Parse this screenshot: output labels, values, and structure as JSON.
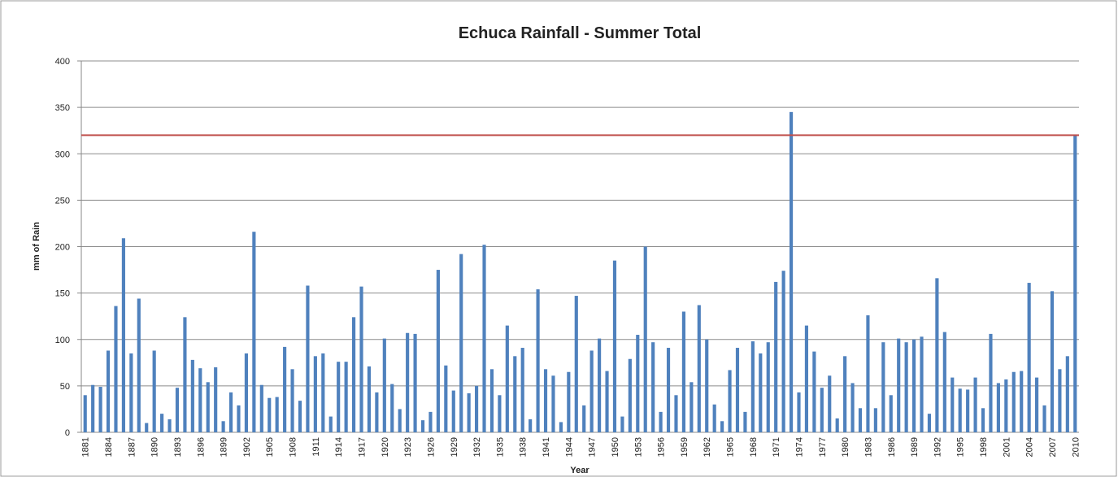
{
  "chart_data": {
    "type": "bar",
    "title": "Echuca Rainfall - Summer Total",
    "y_label": "mm of Rain",
    "x_label": "Year",
    "categories": [
      "1881",
      null,
      null,
      "1884",
      null,
      null,
      "1887",
      null,
      null,
      "1890",
      null,
      null,
      "1893",
      null,
      null,
      "1896",
      null,
      null,
      "1899",
      null,
      null,
      "1902",
      null,
      null,
      "1905",
      null,
      null,
      "1908",
      null,
      null,
      "1911",
      null,
      null,
      "1914",
      null,
      null,
      "1917",
      null,
      null,
      "1920",
      null,
      null,
      "1923",
      null,
      null,
      "1926",
      null,
      null,
      "1929",
      null,
      null,
      "1932",
      null,
      null,
      "1935",
      null,
      null,
      "1938",
      null,
      null,
      "1941",
      null,
      null,
      "1944",
      null,
      null,
      "1947",
      null,
      null,
      "1950",
      null,
      null,
      "1953",
      null,
      null,
      "1956",
      null,
      null,
      "1959",
      null,
      null,
      "1962",
      null,
      null,
      "1965",
      null,
      null,
      "1968",
      null,
      null,
      "1971",
      null,
      null,
      "1974",
      null,
      null,
      "1977",
      null,
      null,
      "1980",
      null,
      null,
      "1983",
      null,
      null,
      "1986",
      null,
      null,
      "1989",
      null,
      null,
      "1992",
      null,
      null,
      "1995",
      null,
      null,
      "1998",
      null,
      null,
      "2001",
      null,
      null,
      "2004",
      null,
      null,
      "2007",
      null,
      null,
      "2010"
    ],
    "values": [
      40,
      51,
      49,
      88,
      136,
      209,
      85,
      144,
      10,
      88,
      20,
      14,
      48,
      124,
      78,
      69,
      54,
      70,
      12,
      43,
      29,
      85,
      216,
      51,
      37,
      38,
      92,
      68,
      34,
      158,
      82,
      85,
      17,
      76,
      76,
      124,
      157,
      71,
      43,
      101,
      52,
      25,
      107,
      106,
      13,
      22,
      175,
      72,
      45,
      192,
      42,
      50,
      202,
      68,
      40,
      115,
      82,
      91,
      14,
      154,
      68,
      61,
      11,
      65,
      147,
      29,
      88,
      101,
      66,
      185,
      17,
      79,
      105,
      200,
      97,
      22,
      91,
      40,
      130,
      54,
      137,
      100,
      30,
      12,
      67,
      91,
      22,
      98,
      85,
      97,
      162,
      174,
      345,
      43,
      115,
      87,
      48,
      61,
      15,
      82,
      53,
      26,
      126,
      26,
      97,
      40,
      101,
      97,
      100,
      103,
      20,
      166,
      108,
      59,
      47,
      46,
      59,
      26,
      106,
      53,
      57,
      65,
      66,
      161,
      59,
      29,
      152,
      68,
      82,
      320
    ],
    "color": "#4f81bd",
    "reference_line": {
      "value": 320,
      "color": "#c0504d"
    },
    "ylim": [
      0,
      400
    ],
    "yticks": [
      0,
      50,
      100,
      150,
      200,
      250,
      300,
      350,
      400
    ],
    "grid": true
  }
}
